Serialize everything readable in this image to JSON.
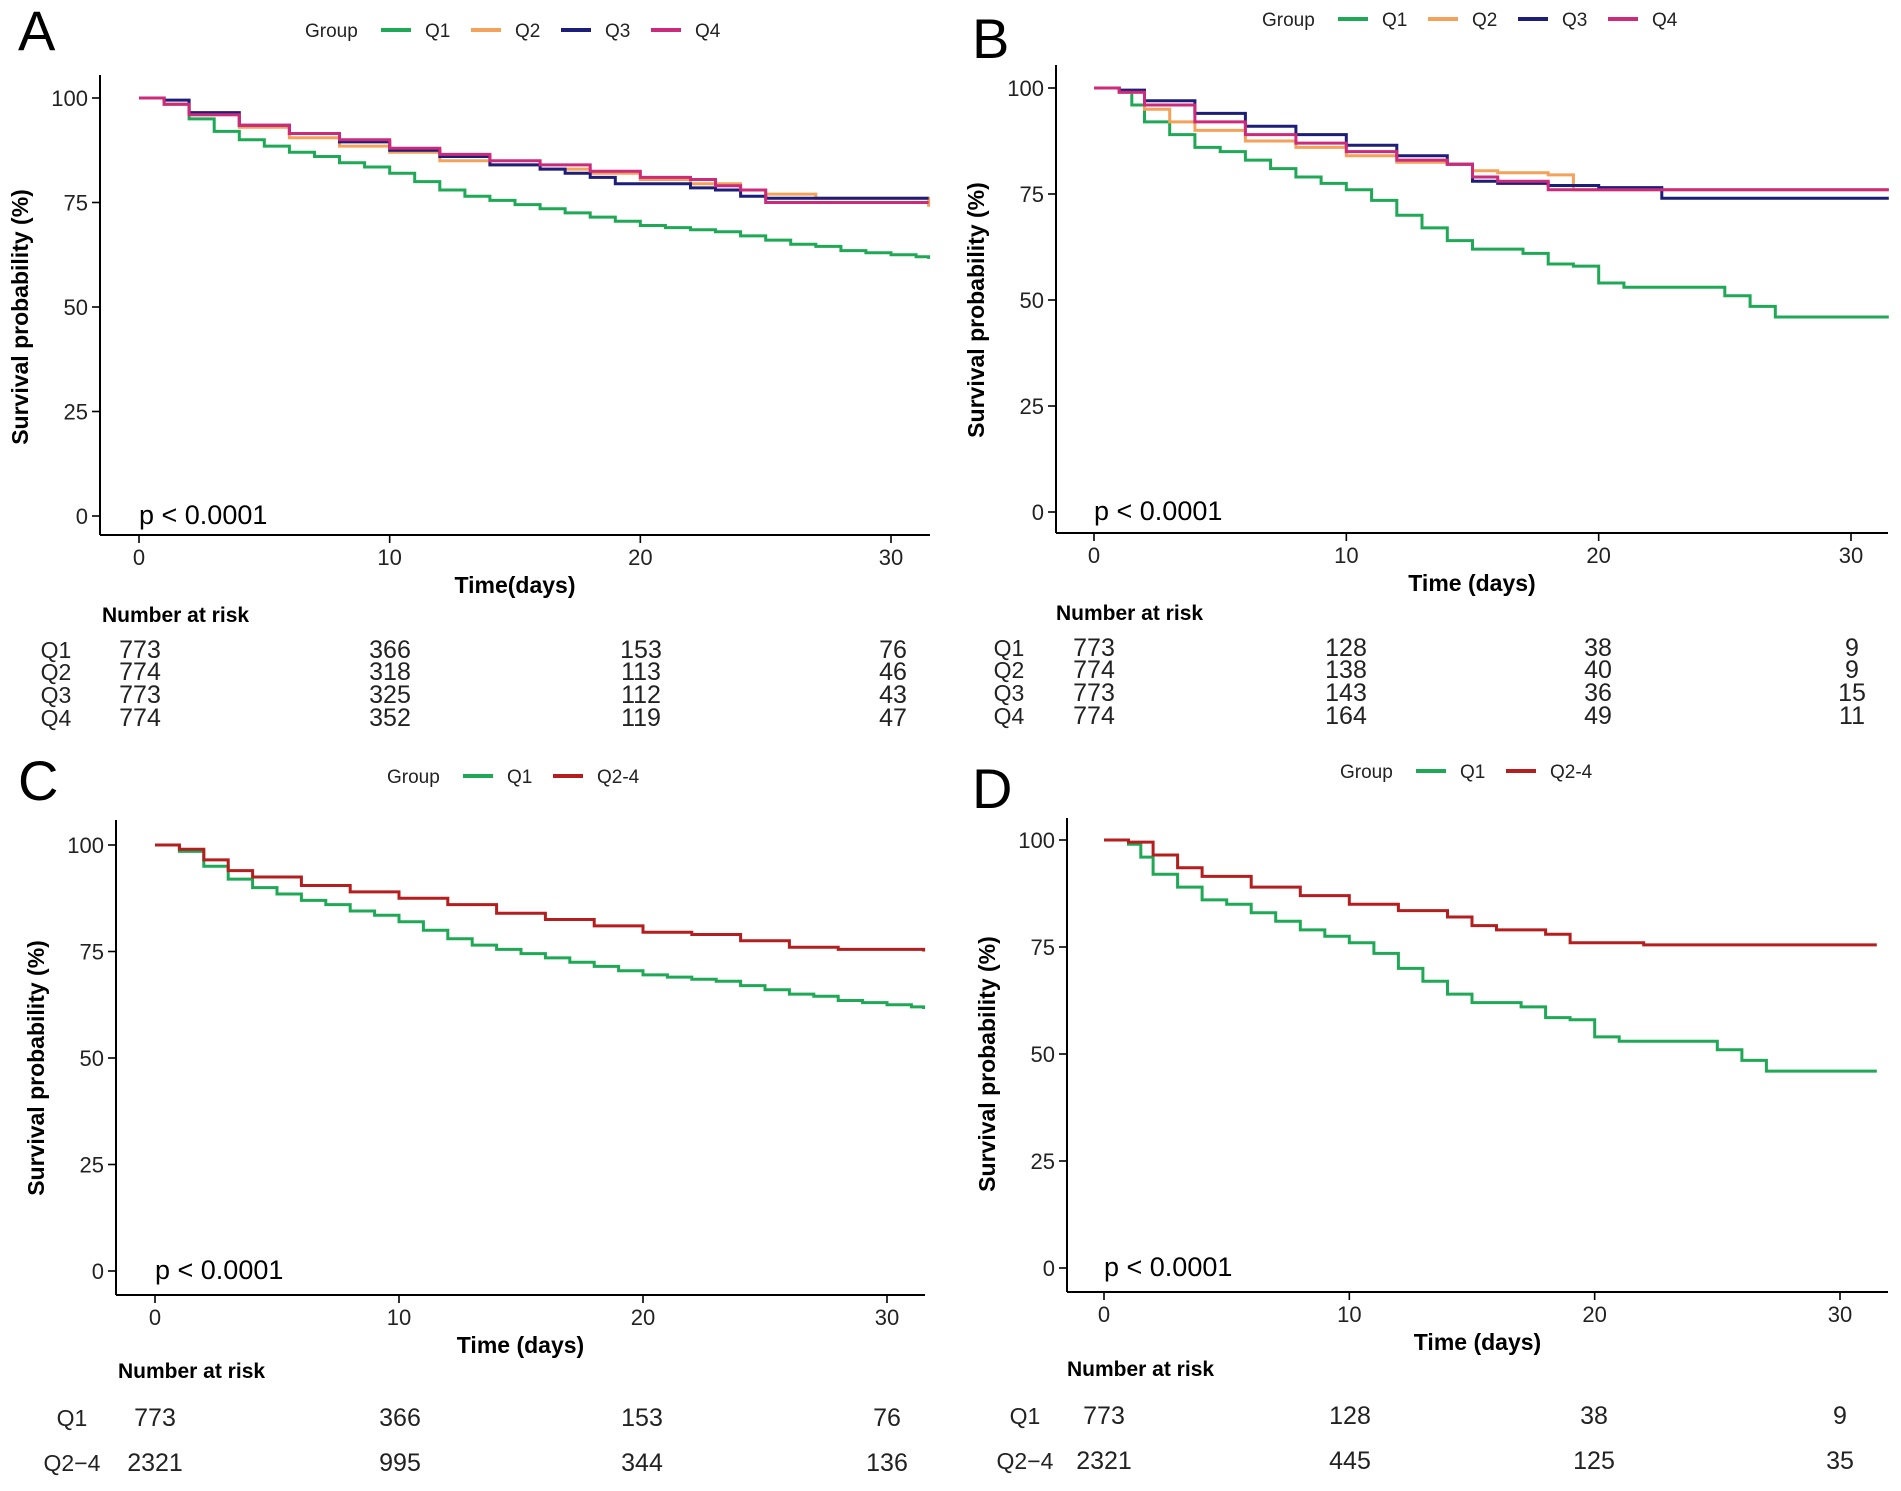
{
  "colors": {
    "Q1": "#1fa855",
    "Q2": "#f4a259",
    "Q3": "#1d1d7a",
    "Q4": "#cc2a7a",
    "Q2-4": "#b41e1e"
  },
  "chart_data": [
    {
      "panel": "A",
      "type": "line",
      "subtype": "kaplan-meier",
      "legend_title": "Group",
      "legend": [
        "Q1",
        "Q2",
        "Q3",
        "Q4"
      ],
      "xlabel": "Time(days)",
      "ylabel": "Survival probability (%)",
      "xlim": [
        0,
        31.5
      ],
      "ylim": [
        0,
        100
      ],
      "xticks": [
        "0",
        "10",
        "20",
        "30"
      ],
      "yticks": [
        "0",
        "25",
        "50",
        "75",
        "100"
      ],
      "pvalue": "p < 0.0001",
      "series": [
        {
          "name": "Q1",
          "x": [
            0,
            1,
            2,
            3,
            4,
            5,
            6,
            7,
            8,
            9,
            10,
            11,
            12,
            13,
            14,
            15,
            16,
            17,
            18,
            19,
            20,
            21,
            22,
            23,
            24,
            25,
            26,
            27,
            28,
            29,
            30,
            31,
            31.5
          ],
          "y": [
            100,
            98.5,
            95,
            92,
            90,
            88.5,
            87,
            86,
            84.5,
            83.5,
            82,
            80,
            78,
            76.5,
            75.5,
            74.5,
            73.5,
            72.5,
            71.5,
            70.5,
            69.5,
            69,
            68.5,
            68,
            67,
            66,
            65,
            64.5,
            63.5,
            63,
            62.5,
            62,
            61.5
          ]
        },
        {
          "name": "Q2",
          "x": [
            0,
            1,
            2,
            4,
            6,
            8,
            10,
            12,
            14,
            16,
            18,
            20,
            22,
            24,
            25,
            26,
            27,
            28,
            29,
            30,
            31,
            31.5
          ],
          "y": [
            100,
            98.5,
            96,
            93,
            90.5,
            88.5,
            87,
            85,
            84,
            83,
            82,
            80.5,
            79.5,
            78,
            77,
            77,
            76,
            76,
            76,
            76,
            76,
            74
          ]
        },
        {
          "name": "Q3",
          "x": [
            0,
            1,
            2,
            4,
            6,
            8,
            10,
            12,
            14,
            16,
            17,
            18,
            19,
            20,
            21,
            22,
            23,
            24,
            25,
            26,
            28,
            30,
            31.5
          ],
          "y": [
            100,
            99.5,
            96.5,
            93.5,
            91.5,
            89.5,
            87.5,
            86,
            84,
            83,
            82,
            81,
            79.5,
            79.5,
            79.5,
            78.5,
            78,
            76.5,
            76,
            76,
            76,
            76,
            76
          ]
        },
        {
          "name": "Q4",
          "x": [
            0,
            1,
            2,
            4,
            6,
            8,
            10,
            12,
            14,
            16,
            18,
            20,
            22,
            23,
            24,
            25,
            26,
            28,
            30,
            31.5
          ],
          "y": [
            100,
            98.5,
            96,
            93.5,
            91.5,
            90,
            88,
            86.5,
            85,
            84,
            82.5,
            81,
            80.5,
            79,
            78,
            75,
            75,
            75,
            75,
            75
          ]
        }
      ],
      "risk_table": {
        "title": "Number at risk",
        "times": [
          0,
          10,
          20,
          30
        ],
        "rows": [
          {
            "group": "Q1",
            "values": [
              "773",
              "366",
              "153",
              "76"
            ]
          },
          {
            "group": "Q2",
            "values": [
              "774",
              "318",
              "113",
              "46"
            ]
          },
          {
            "group": "Q3",
            "values": [
              "773",
              "325",
              "112",
              "43"
            ]
          },
          {
            "group": "Q4",
            "values": [
              "774",
              "352",
              "119",
              "47"
            ]
          }
        ]
      }
    },
    {
      "panel": "B",
      "type": "line",
      "subtype": "kaplan-meier",
      "legend_title": "Group",
      "legend": [
        "Q1",
        "Q2",
        "Q3",
        "Q4"
      ],
      "xlabel": "Time (days)",
      "ylabel": "Survival probability (%)",
      "xlim": [
        0,
        31.5
      ],
      "ylim": [
        0,
        100
      ],
      "xticks": [
        "0",
        "10",
        "20",
        "30"
      ],
      "yticks": [
        "0",
        "25",
        "50",
        "75",
        "100"
      ],
      "pvalue": "p < 0.0001",
      "series": [
        {
          "name": "Q1",
          "x": [
            0,
            1,
            1.5,
            2,
            3,
            4,
            5,
            6,
            7,
            8,
            9,
            10,
            11,
            12,
            13,
            14,
            15,
            16,
            17,
            18,
            19,
            20,
            21,
            22,
            23,
            24,
            25,
            26,
            27,
            28,
            30,
            31.5
          ],
          "y": [
            100,
            99,
            96,
            92,
            89,
            86,
            85,
            83,
            81,
            79,
            77.5,
            76,
            73.5,
            70,
            67,
            64,
            62,
            62,
            61,
            58.5,
            58,
            54,
            53,
            53,
            53,
            53,
            51,
            48.5,
            46,
            46,
            46,
            46
          ]
        },
        {
          "name": "Q2",
          "x": [
            0,
            1,
            2,
            3,
            4,
            6,
            8,
            10,
            12,
            14,
            15,
            16,
            17,
            18,
            19,
            20,
            22,
            24,
            26,
            28,
            30,
            31.5
          ],
          "y": [
            100,
            99,
            95,
            92,
            90,
            87.5,
            86,
            84,
            82.5,
            82,
            80.5,
            80,
            80,
            79.5,
            76,
            76,
            76,
            76,
            76,
            76,
            76,
            76
          ]
        },
        {
          "name": "Q3",
          "x": [
            0,
            1,
            2,
            4,
            6,
            8,
            10,
            12,
            14,
            15,
            16,
            18,
            20,
            22,
            22.5,
            24,
            26,
            28,
            30,
            31.5
          ],
          "y": [
            100,
            99.5,
            97,
            94,
            91,
            89,
            86.5,
            84,
            82,
            78,
            77.5,
            77,
            76.5,
            76.5,
            74,
            74,
            74,
            74,
            74,
            74
          ]
        },
        {
          "name": "Q4",
          "x": [
            0,
            1,
            2,
            4,
            6,
            8,
            10,
            12,
            14,
            15,
            16,
            18,
            20,
            22,
            24,
            26,
            28,
            30,
            31.5
          ],
          "y": [
            100,
            99,
            96,
            92,
            89,
            87,
            85,
            83,
            82,
            79,
            78,
            76,
            76,
            76,
            76,
            76,
            76,
            76,
            76
          ]
        }
      ],
      "risk_table": {
        "title": "Number at risk",
        "times": [
          0,
          10,
          20,
          30
        ],
        "rows": [
          {
            "group": "Q1",
            "values": [
              "773",
              "128",
              "38",
              "9"
            ]
          },
          {
            "group": "Q2",
            "values": [
              "774",
              "138",
              "40",
              "9"
            ]
          },
          {
            "group": "Q3",
            "values": [
              "773",
              "143",
              "36",
              "15"
            ]
          },
          {
            "group": "Q4",
            "values": [
              "774",
              "164",
              "49",
              "11"
            ]
          }
        ]
      }
    },
    {
      "panel": "C",
      "type": "line",
      "subtype": "kaplan-meier",
      "legend_title": "Group",
      "legend": [
        "Q1",
        "Q2-4"
      ],
      "xlabel": "Time (days)",
      "ylabel": "Survival probability (%)",
      "xlim": [
        0,
        31.5
      ],
      "ylim": [
        0,
        100
      ],
      "xticks": [
        "0",
        "10",
        "20",
        "30"
      ],
      "yticks": [
        "0",
        "25",
        "50",
        "75",
        "100"
      ],
      "pvalue": "p < 0.0001",
      "series": [
        {
          "name": "Q1",
          "x": [
            0,
            1,
            2,
            3,
            4,
            5,
            6,
            7,
            8,
            9,
            10,
            11,
            12,
            13,
            14,
            15,
            16,
            17,
            18,
            19,
            20,
            21,
            22,
            23,
            24,
            25,
            26,
            27,
            28,
            29,
            30,
            31,
            31.5
          ],
          "y": [
            100,
            98.5,
            95,
            92,
            90,
            88.5,
            87,
            86,
            84.5,
            83.5,
            82,
            80,
            78,
            76.5,
            75.5,
            74.5,
            73.5,
            72.5,
            71.5,
            70.5,
            69.5,
            69,
            68.5,
            68,
            67,
            66,
            65,
            64.5,
            63.5,
            63,
            62.5,
            62,
            61.5
          ]
        },
        {
          "name": "Q2-4",
          "x": [
            0,
            1,
            2,
            3,
            4,
            6,
            8,
            10,
            12,
            14,
            16,
            18,
            20,
            22,
            24,
            26,
            28,
            30,
            31.5
          ],
          "y": [
            100,
            99,
            96.5,
            94,
            92.5,
            90.5,
            89,
            87.5,
            86,
            84,
            82.5,
            81,
            79.5,
            79,
            77.5,
            76,
            75.5,
            75.5,
            75
          ]
        }
      ],
      "risk_table": {
        "title": "Number at risk",
        "times": [
          0,
          10,
          20,
          30
        ],
        "rows": [
          {
            "group": "Q1",
            "values": [
              "773",
              "366",
              "153",
              "76"
            ]
          },
          {
            "group": "Q2−4",
            "values": [
              "2321",
              "995",
              "344",
              "136"
            ]
          }
        ]
      }
    },
    {
      "panel": "D",
      "type": "line",
      "subtype": "kaplan-meier",
      "legend_title": "Group",
      "legend": [
        "Q1",
        "Q2-4"
      ],
      "xlabel": "Time (days)",
      "ylabel": "Survival probability (%)",
      "xlim": [
        0,
        31.5
      ],
      "ylim": [
        0,
        100
      ],
      "xticks": [
        "0",
        "10",
        "20",
        "30"
      ],
      "yticks": [
        "0",
        "25",
        "50",
        "75",
        "100"
      ],
      "pvalue": "p < 0.0001",
      "series": [
        {
          "name": "Q1",
          "x": [
            0,
            1,
            1.5,
            2,
            3,
            4,
            5,
            6,
            7,
            8,
            9,
            10,
            11,
            12,
            13,
            14,
            15,
            16,
            17,
            18,
            19,
            20,
            21,
            22,
            23,
            24,
            25,
            26,
            27,
            28,
            30,
            31.5
          ],
          "y": [
            100,
            99,
            96,
            92,
            89,
            86,
            85,
            83,
            81,
            79,
            77.5,
            76,
            73.5,
            70,
            67,
            64,
            62,
            62,
            61,
            58.5,
            58,
            54,
            53,
            53,
            53,
            53,
            51,
            48.5,
            46,
            46,
            46,
            46
          ]
        },
        {
          "name": "Q2-4",
          "x": [
            0,
            1,
            2,
            3,
            4,
            6,
            8,
            10,
            12,
            14,
            15,
            16,
            18,
            19,
            20,
            22,
            24,
            26,
            28,
            30,
            31.5
          ],
          "y": [
            100,
            99.5,
            96.5,
            93.5,
            91.5,
            89,
            87,
            85,
            83.5,
            82,
            80,
            79,
            78,
            76,
            76,
            75.5,
            75.5,
            75.5,
            75.5,
            75.5,
            75.5
          ]
        }
      ],
      "risk_table": {
        "title": "Number at risk",
        "times": [
          0,
          10,
          20,
          30
        ],
        "rows": [
          {
            "group": "Q1",
            "values": [
              "773",
              "128",
              "38",
              "9"
            ]
          },
          {
            "group": "Q2−4",
            "values": [
              "2321",
              "445",
              "125",
              "35"
            ]
          }
        ]
      }
    }
  ]
}
